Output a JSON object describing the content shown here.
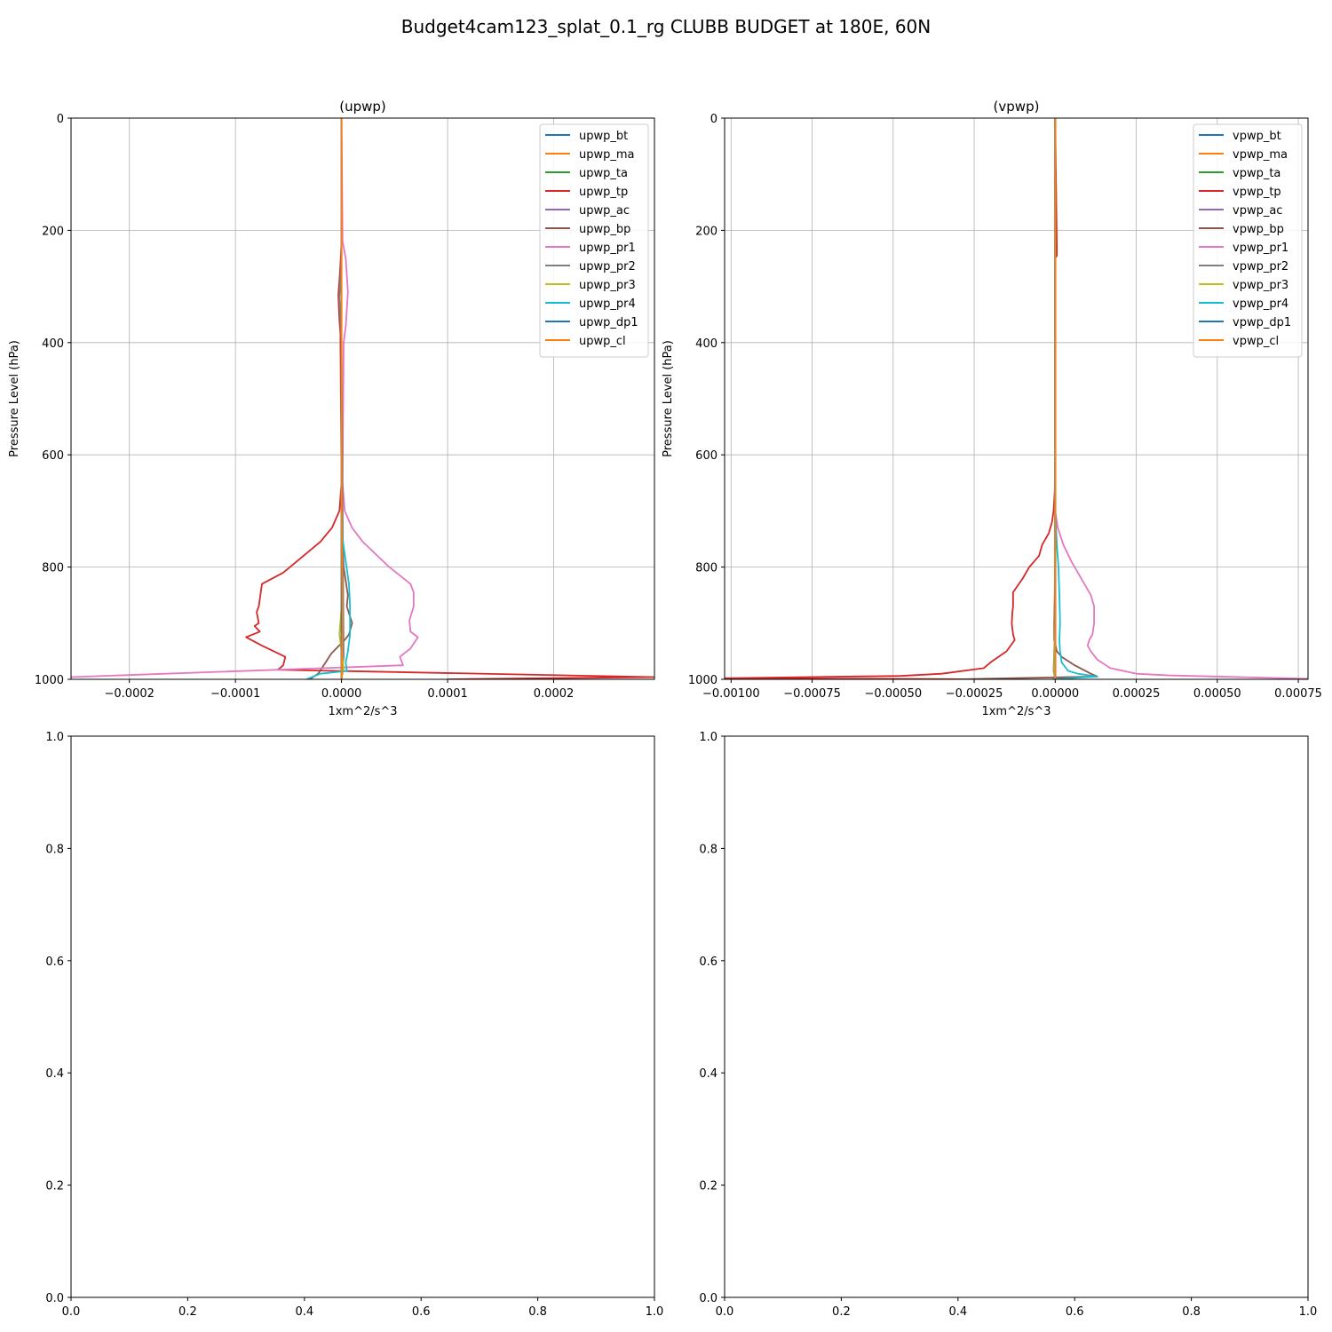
{
  "figure": {
    "suptitle": "Budget4cam123_splat_0.1_rg CLUBB BUDGET at 180E, 60N"
  },
  "chart_data": [
    {
      "type": "line",
      "title": "(upwp)",
      "xlabel": "1xm^2/s^3",
      "ylabel": "Pressure Level (hPa)",
      "xlim": [
        -0.000255,
        0.000295
      ],
      "ylim": [
        1000,
        0
      ],
      "xticks": [
        "−0.0002",
        "−0.0001",
        "0.0000",
        "0.0001",
        "0.0002"
      ],
      "xtick_values": [
        -0.0002,
        -0.0001,
        0.0,
        0.0001,
        0.0002
      ],
      "yticks": [
        "0",
        "200",
        "400",
        "600",
        "800",
        "1000"
      ],
      "ytick_values": [
        0,
        200,
        400,
        600,
        800,
        1000
      ],
      "grid": true,
      "legend_position": "top-right",
      "series": [
        {
          "name": "upwp_bt",
          "color": "#1f77b4",
          "x": [
            0,
            0,
            0,
            0,
            0
          ],
          "y": [
            0,
            400,
            800,
            990,
            1000
          ]
        },
        {
          "name": "upwp_ma",
          "color": "#ff7f0e",
          "x": [
            0,
            0,
            0,
            0,
            0
          ],
          "y": [
            0,
            400,
            800,
            990,
            1000
          ]
        },
        {
          "name": "upwp_ta",
          "color": "#2ca02c",
          "x": [
            0,
            0,
            0,
            0,
            0
          ],
          "y": [
            0,
            400,
            800,
            990,
            1000
          ]
        },
        {
          "name": "upwp_tp",
          "color": "#d62728",
          "x": [
            0,
            0,
            -1e-06,
            -2e-06,
            -3e-06,
            -2e-06,
            -1e-06,
            -1e-06,
            0,
            -2e-06,
            -9e-06,
            -2e-05,
            -5.5e-05,
            -7.5e-05,
            -7.8e-05,
            -8e-05,
            -7.8e-05,
            -8.2e-05,
            -7.7e-05,
            -9e-05,
            -7.5e-05,
            -5.3e-05,
            -5.5e-05,
            -6e-05,
            0.000295,
            0.0001
          ],
          "y": [
            0,
            220,
            260,
            290,
            315,
            360,
            385,
            400,
            650,
            700,
            730,
            755,
            810,
            830,
            870,
            880,
            900,
            905,
            915,
            925,
            940,
            960,
            975,
            983,
            996,
            1000
          ]
        },
        {
          "name": "upwp_ac",
          "color": "#9467bd",
          "x": [
            0,
            0,
            0,
            0,
            0
          ],
          "y": [
            0,
            400,
            800,
            990,
            1000
          ]
        },
        {
          "name": "upwp_bp",
          "color": "#8c564b",
          "x": [
            0,
            0,
            2e-06,
            6e-06,
            5e-06,
            1e-05,
            7e-06,
            3e-06,
            -5e-06,
            -1e-05,
            -1.5e-05,
            -2.2e-05,
            -3e-05
          ],
          "y": [
            0,
            700,
            800,
            850,
            870,
            900,
            920,
            930,
            945,
            955,
            970,
            990,
            1000
          ]
        },
        {
          "name": "upwp_pr1",
          "color": "#e377c2",
          "x": [
            0,
            1e-06,
            4e-06,
            6e-06,
            4e-06,
            2e-06,
            1e-06,
            3e-06,
            1e-05,
            2e-05,
            4.5e-05,
            6.5e-05,
            6.8e-05,
            6.8e-05,
            6.4e-05,
            6.5e-05,
            7.2e-05,
            6.5e-05,
            5.5e-05,
            5.8e-05,
            -0.000255
          ],
          "y": [
            0,
            220,
            250,
            310,
            370,
            400,
            650,
            700,
            730,
            755,
            800,
            830,
            845,
            870,
            895,
            915,
            925,
            945,
            960,
            975,
            996
          ]
        },
        {
          "name": "upwp_pr2",
          "color": "#7f7f7f",
          "x": [
            0,
            0,
            -2e-06,
            0,
            2e-06,
            0
          ],
          "y": [
            0,
            250,
            320,
            400,
            960,
            1000
          ]
        },
        {
          "name": "upwp_pr3",
          "color": "#bcbd22",
          "x": [
            0,
            0,
            0,
            -2e-06,
            2e-06,
            0
          ],
          "y": [
            0,
            400,
            870,
            920,
            980,
            1000
          ]
        },
        {
          "name": "upwp_pr4",
          "color": "#17becf",
          "x": [
            0,
            0,
            1e-06,
            4e-06,
            7e-06,
            8e-06,
            8e-06,
            6e-06,
            4e-06,
            5e-06,
            -2e-05,
            -3.3e-05
          ],
          "y": [
            0,
            700,
            750,
            790,
            830,
            870,
            920,
            950,
            970,
            985,
            990,
            1000
          ]
        },
        {
          "name": "upwp_dp1",
          "color": "#1f77b4",
          "x": [
            0,
            0,
            0,
            0
          ],
          "y": [
            0,
            500,
            990,
            1000
          ]
        },
        {
          "name": "upwp_cl",
          "color": "#ff7f0e",
          "x": [
            0,
            0,
            1e-06,
            0,
            0
          ],
          "y": [
            0,
            700,
            900,
            980,
            1000
          ]
        }
      ]
    },
    {
      "type": "line",
      "title": "(vpwp)",
      "xlabel": "1xm^2/s^3",
      "ylabel": "Pressure Level (hPa)",
      "xlim": [
        -0.00102,
        0.00078
      ],
      "ylim": [
        1000,
        0
      ],
      "xticks": [
        "−0.00100",
        "−0.00075",
        "−0.00050",
        "−0.00025",
        "0.00000",
        "0.00025",
        "0.00050",
        "0.00075"
      ],
      "xtick_values": [
        -0.001,
        -0.00075,
        -0.0005,
        -0.00025,
        0.0,
        0.00025,
        0.0005,
        0.00075
      ],
      "yticks": [
        "0",
        "200",
        "400",
        "600",
        "800",
        "1000"
      ],
      "ytick_values": [
        0,
        200,
        400,
        600,
        800,
        1000
      ],
      "grid": true,
      "legend_position": "top-right",
      "series": [
        {
          "name": "vpwp_bt",
          "color": "#1f77b4",
          "x": [
            0,
            0,
            0,
            0
          ],
          "y": [
            0,
            500,
            990,
            1000
          ]
        },
        {
          "name": "vpwp_ma",
          "color": "#ff7f0e",
          "x": [
            0,
            0,
            0,
            0
          ],
          "y": [
            0,
            500,
            990,
            1000
          ]
        },
        {
          "name": "vpwp_ta",
          "color": "#2ca02c",
          "x": [
            0,
            0,
            0,
            0
          ],
          "y": [
            0,
            500,
            990,
            1000
          ]
        },
        {
          "name": "vpwp_tp",
          "color": "#d62728",
          "x": [
            0,
            5e-06,
            5e-06,
            0,
            0,
            -5e-06,
            -1e-05,
            -2e-05,
            -4e-05,
            -5e-05,
            -8e-05,
            -0.0001,
            -0.00013,
            -0.00013,
            -0.000132,
            -0.000134,
            -0.00013,
            -0.000125,
            -0.00015,
            -0.0002,
            -0.00022,
            -0.00035,
            -0.00048,
            -0.00102,
            -0.0002
          ],
          "y": [
            0,
            230,
            245,
            250,
            650,
            700,
            720,
            740,
            760,
            780,
            800,
            820,
            845,
            870,
            880,
            900,
            920,
            930,
            950,
            970,
            980,
            990,
            994,
            998,
            1000
          ]
        },
        {
          "name": "vpwp_ac",
          "color": "#9467bd",
          "x": [
            0,
            0,
            0,
            0
          ],
          "y": [
            0,
            500,
            990,
            1000
          ]
        },
        {
          "name": "vpwp_bp",
          "color": "#8c564b",
          "x": [
            0,
            0,
            -3e-06,
            -3e-06,
            5e-06,
            2e-05,
            6e-05,
            0.00011,
            0.00013,
            -0.0003
          ],
          "y": [
            0,
            800,
            900,
            930,
            950,
            960,
            975,
            990,
            995,
            1000
          ]
        },
        {
          "name": "vpwp_pr1",
          "color": "#e377c2",
          "x": [
            0,
            0,
            8e-06,
            2.5e-05,
            5e-05,
            7e-05,
            9e-05,
            0.00011,
            0.00012,
            0.00012,
            0.000115,
            0.000105,
            0.0001,
            0.00011,
            0.00013,
            0.00017,
            0.00025,
            0.00035,
            0.00078
          ],
          "y": [
            0,
            700,
            730,
            760,
            790,
            810,
            830,
            850,
            870,
            900,
            920,
            930,
            940,
            950,
            965,
            980,
            990,
            993,
            999
          ]
        },
        {
          "name": "vpwp_pr2",
          "color": "#7f7f7f",
          "x": [
            0,
            0,
            -5e-06,
            0
          ],
          "y": [
            0,
            900,
            985,
            1000
          ]
        },
        {
          "name": "vpwp_pr3",
          "color": "#bcbd22",
          "x": [
            0,
            0,
            -3e-06,
            0
          ],
          "y": [
            0,
            900,
            985,
            1000
          ]
        },
        {
          "name": "vpwp_pr4",
          "color": "#17becf",
          "x": [
            0,
            0,
            5e-06,
            1e-05,
            1.3e-05,
            1.5e-05,
            1.3e-05,
            1.5e-05,
            2e-05,
            4e-05,
            7e-05,
            0.00013,
            -1e-05
          ],
          "y": [
            0,
            700,
            760,
            800,
            850,
            900,
            930,
            950,
            970,
            985,
            990,
            995,
            1000
          ]
        },
        {
          "name": "vpwp_dp1",
          "color": "#1f77b4",
          "x": [
            0,
            0,
            0,
            0
          ],
          "y": [
            0,
            500,
            990,
            1000
          ]
        },
        {
          "name": "vpwp_cl",
          "color": "#ff7f0e",
          "x": [
            0,
            0,
            0,
            0
          ],
          "y": [
            0,
            500,
            990,
            1000
          ]
        }
      ]
    },
    {
      "type": "line",
      "title": "",
      "xlim": [
        0,
        1
      ],
      "ylim": [
        0,
        1
      ],
      "xticks": [
        "0.0",
        "0.2",
        "0.4",
        "0.6",
        "0.8",
        "1.0"
      ],
      "xtick_values": [
        0,
        0.2,
        0.4,
        0.6,
        0.8,
        1.0
      ],
      "yticks": [
        "0.0",
        "0.2",
        "0.4",
        "0.6",
        "0.8",
        "1.0"
      ],
      "ytick_values": [
        0,
        0.2,
        0.4,
        0.6,
        0.8,
        1.0
      ],
      "grid": false,
      "series": []
    },
    {
      "type": "line",
      "title": "",
      "xlim": [
        0,
        1
      ],
      "ylim": [
        0,
        1
      ],
      "xticks": [
        "0.0",
        "0.2",
        "0.4",
        "0.6",
        "0.8",
        "1.0"
      ],
      "xtick_values": [
        0,
        0.2,
        0.4,
        0.6,
        0.8,
        1.0
      ],
      "yticks": [
        "0.0",
        "0.2",
        "0.4",
        "0.6",
        "0.8",
        "1.0"
      ],
      "ytick_values": [
        0,
        0.2,
        0.4,
        0.6,
        0.8,
        1.0
      ],
      "grid": false,
      "series": []
    }
  ]
}
